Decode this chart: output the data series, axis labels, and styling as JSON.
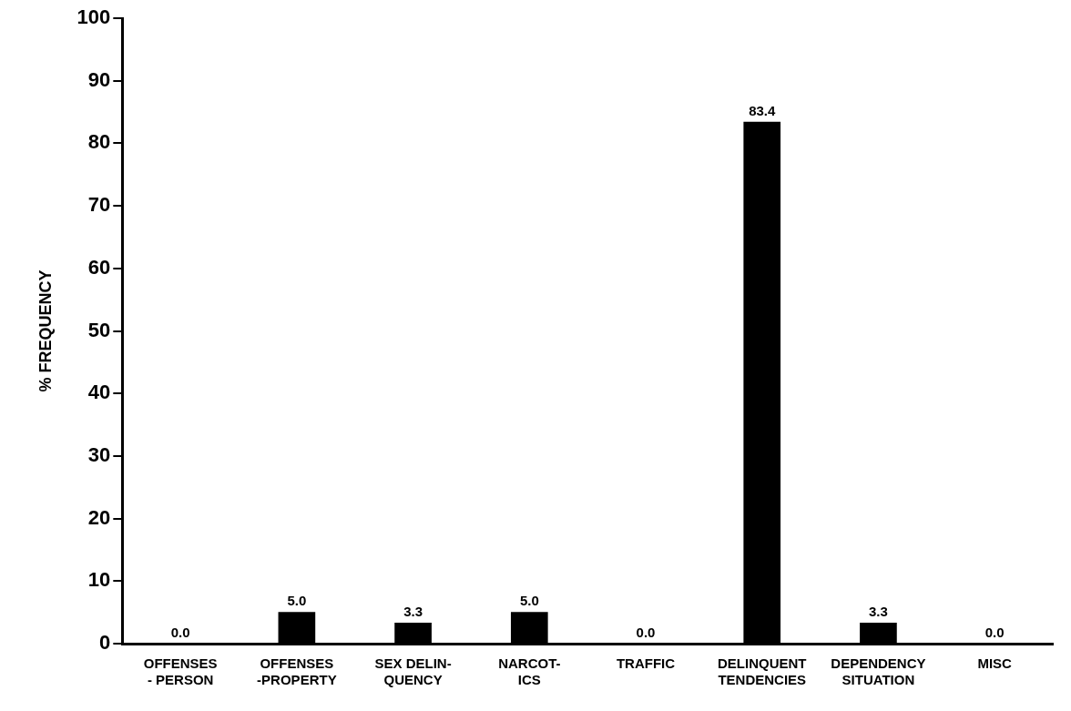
{
  "chart_data": {
    "type": "bar",
    "ylabel": "% FREQUENCY",
    "categories": [
      "OFFENSES\n- PERSON",
      "OFFENSES\n-PROPERTY",
      "SEX DELIN-\nQUENCY",
      "NARCOT-\nICS",
      "TRAFFIC",
      "DELINQUENT\nTENDENCIES",
      "DEPENDENCY\nSITUATION",
      "MISC"
    ],
    "values": [
      0,
      5,
      3.3,
      5,
      0,
      83.4,
      3.3,
      0
    ],
    "value_labels": [
      "0.0",
      "5.0",
      "3.3",
      "5.0",
      "0.0",
      "83.4",
      "3.3",
      "0.0"
    ],
    "color": "#000000",
    "ylim": [
      0,
      100
    ],
    "yticks": [
      0,
      10,
      20,
      30,
      40,
      50,
      60,
      70,
      80,
      90,
      100
    ],
    "grid": false,
    "legend": false
  }
}
